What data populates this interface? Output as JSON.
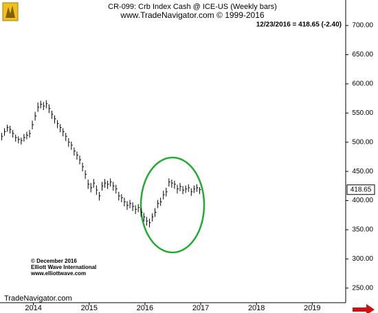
{
  "chart_data": {
    "type": "ohlc",
    "title": "CR-099:  Crb Index Cash @ ICE-US  (Weekly bars)",
    "subtitle": "www.TradeNavigator.com © 1999-2016",
    "last_quote": "12/23/2016 = 418.65 (-2.40)",
    "copyright": [
      "© December 2016",
      "Elliott Wave International",
      "www.elliottwave.com"
    ],
    "source": "TradeNavigator.com",
    "color": "#000000",
    "x": [
      2013.43,
      2013.48,
      2013.53,
      2013.58,
      2013.63,
      2013.68,
      2013.73,
      2013.78,
      2013.83,
      2013.88,
      2013.93,
      2013.98,
      2014.03,
      2014.08,
      2014.13,
      2014.18,
      2014.23,
      2014.28,
      2014.33,
      2014.38,
      2014.43,
      2014.48,
      2014.53,
      2014.58,
      2014.63,
      2014.68,
      2014.73,
      2014.78,
      2014.83,
      2014.88,
      2014.93,
      2014.98,
      2015.03,
      2015.08,
      2015.13,
      2015.18,
      2015.23,
      2015.28,
      2015.33,
      2015.38,
      2015.43,
      2015.48,
      2015.53,
      2015.58,
      2015.63,
      2015.68,
      2015.73,
      2015.78,
      2015.83,
      2015.88,
      2015.93,
      2015.98,
      2016.03,
      2016.08,
      2016.13,
      2016.18,
      2016.23,
      2016.28,
      2016.33,
      2016.38,
      2016.43,
      2016.48,
      2016.53,
      2016.58,
      2016.63,
      2016.68,
      2016.73,
      2016.78,
      2016.83,
      2016.88,
      2016.93,
      2016.98
    ],
    "high": [
      516,
      524,
      530,
      528,
      521,
      513,
      510,
      508,
      514,
      518,
      521,
      537,
      552,
      568,
      571,
      569,
      572,
      565,
      554,
      546,
      538,
      531,
      524,
      516,
      507,
      501,
      491,
      484,
      477,
      465,
      452,
      436,
      430,
      437,
      426,
      415,
      432,
      437,
      434,
      438,
      432,
      427,
      415,
      411,
      405,
      399,
      401,
      397,
      392,
      394,
      387,
      379,
      372,
      369,
      378,
      387,
      401,
      405,
      417,
      422,
      438,
      436,
      434,
      427,
      430,
      425,
      426,
      428,
      421,
      426,
      428,
      423
    ],
    "low": [
      503,
      511,
      518,
      515,
      508,
      501,
      498,
      496,
      501,
      505,
      508,
      522,
      537,
      552,
      558,
      555,
      558,
      550,
      540,
      532,
      524,
      517,
      510,
      502,
      492,
      487,
      477,
      470,
      462,
      450,
      437,
      420,
      414,
      422,
      410,
      400,
      417,
      422,
      420,
      424,
      417,
      412,
      400,
      397,
      390,
      384,
      387,
      382,
      377,
      380,
      372,
      364,
      357,
      354,
      364,
      372,
      387,
      391,
      402,
      407,
      424,
      422,
      420,
      412,
      416,
      411,
      413,
      415,
      408,
      413,
      415,
      411
    ],
    "close": [
      510,
      518,
      525,
      522,
      515,
      508,
      505,
      503,
      508,
      512,
      515,
      530,
      545,
      560,
      565,
      562,
      566,
      558,
      548,
      540,
      532,
      525,
      518,
      510,
      500,
      495,
      485,
      478,
      470,
      458,
      445,
      428,
      422,
      430,
      418,
      408,
      425,
      430,
      428,
      432,
      425,
      420,
      408,
      405,
      398,
      392,
      395,
      390,
      385,
      388,
      380,
      372,
      365,
      362,
      372,
      380,
      395,
      398,
      410,
      415,
      432,
      430,
      428,
      420,
      424,
      418,
      420,
      422,
      415,
      420,
      422,
      418.65
    ],
    "xlim": [
      2013.4,
      2019.6
    ],
    "ylim": [
      225,
      739
    ],
    "xticks": [
      2014,
      2015,
      2016,
      2017,
      2018,
      2019
    ],
    "yticks": [
      {
        "value": 250,
        "label": "250.00"
      },
      {
        "value": 300,
        "label": "300.00"
      },
      {
        "value": 350,
        "label": "350.00"
      },
      {
        "value": 400,
        "label": "400.00"
      },
      {
        "value": 450,
        "label": "450.00"
      },
      {
        "value": 500,
        "label": "500.00"
      },
      {
        "value": 550,
        "label": "550.00"
      },
      {
        "value": 600,
        "label": "600.00"
      },
      {
        "value": 650,
        "label": "650.00"
      },
      {
        "value": 700,
        "label": "700.00"
      }
    ]
  }
}
